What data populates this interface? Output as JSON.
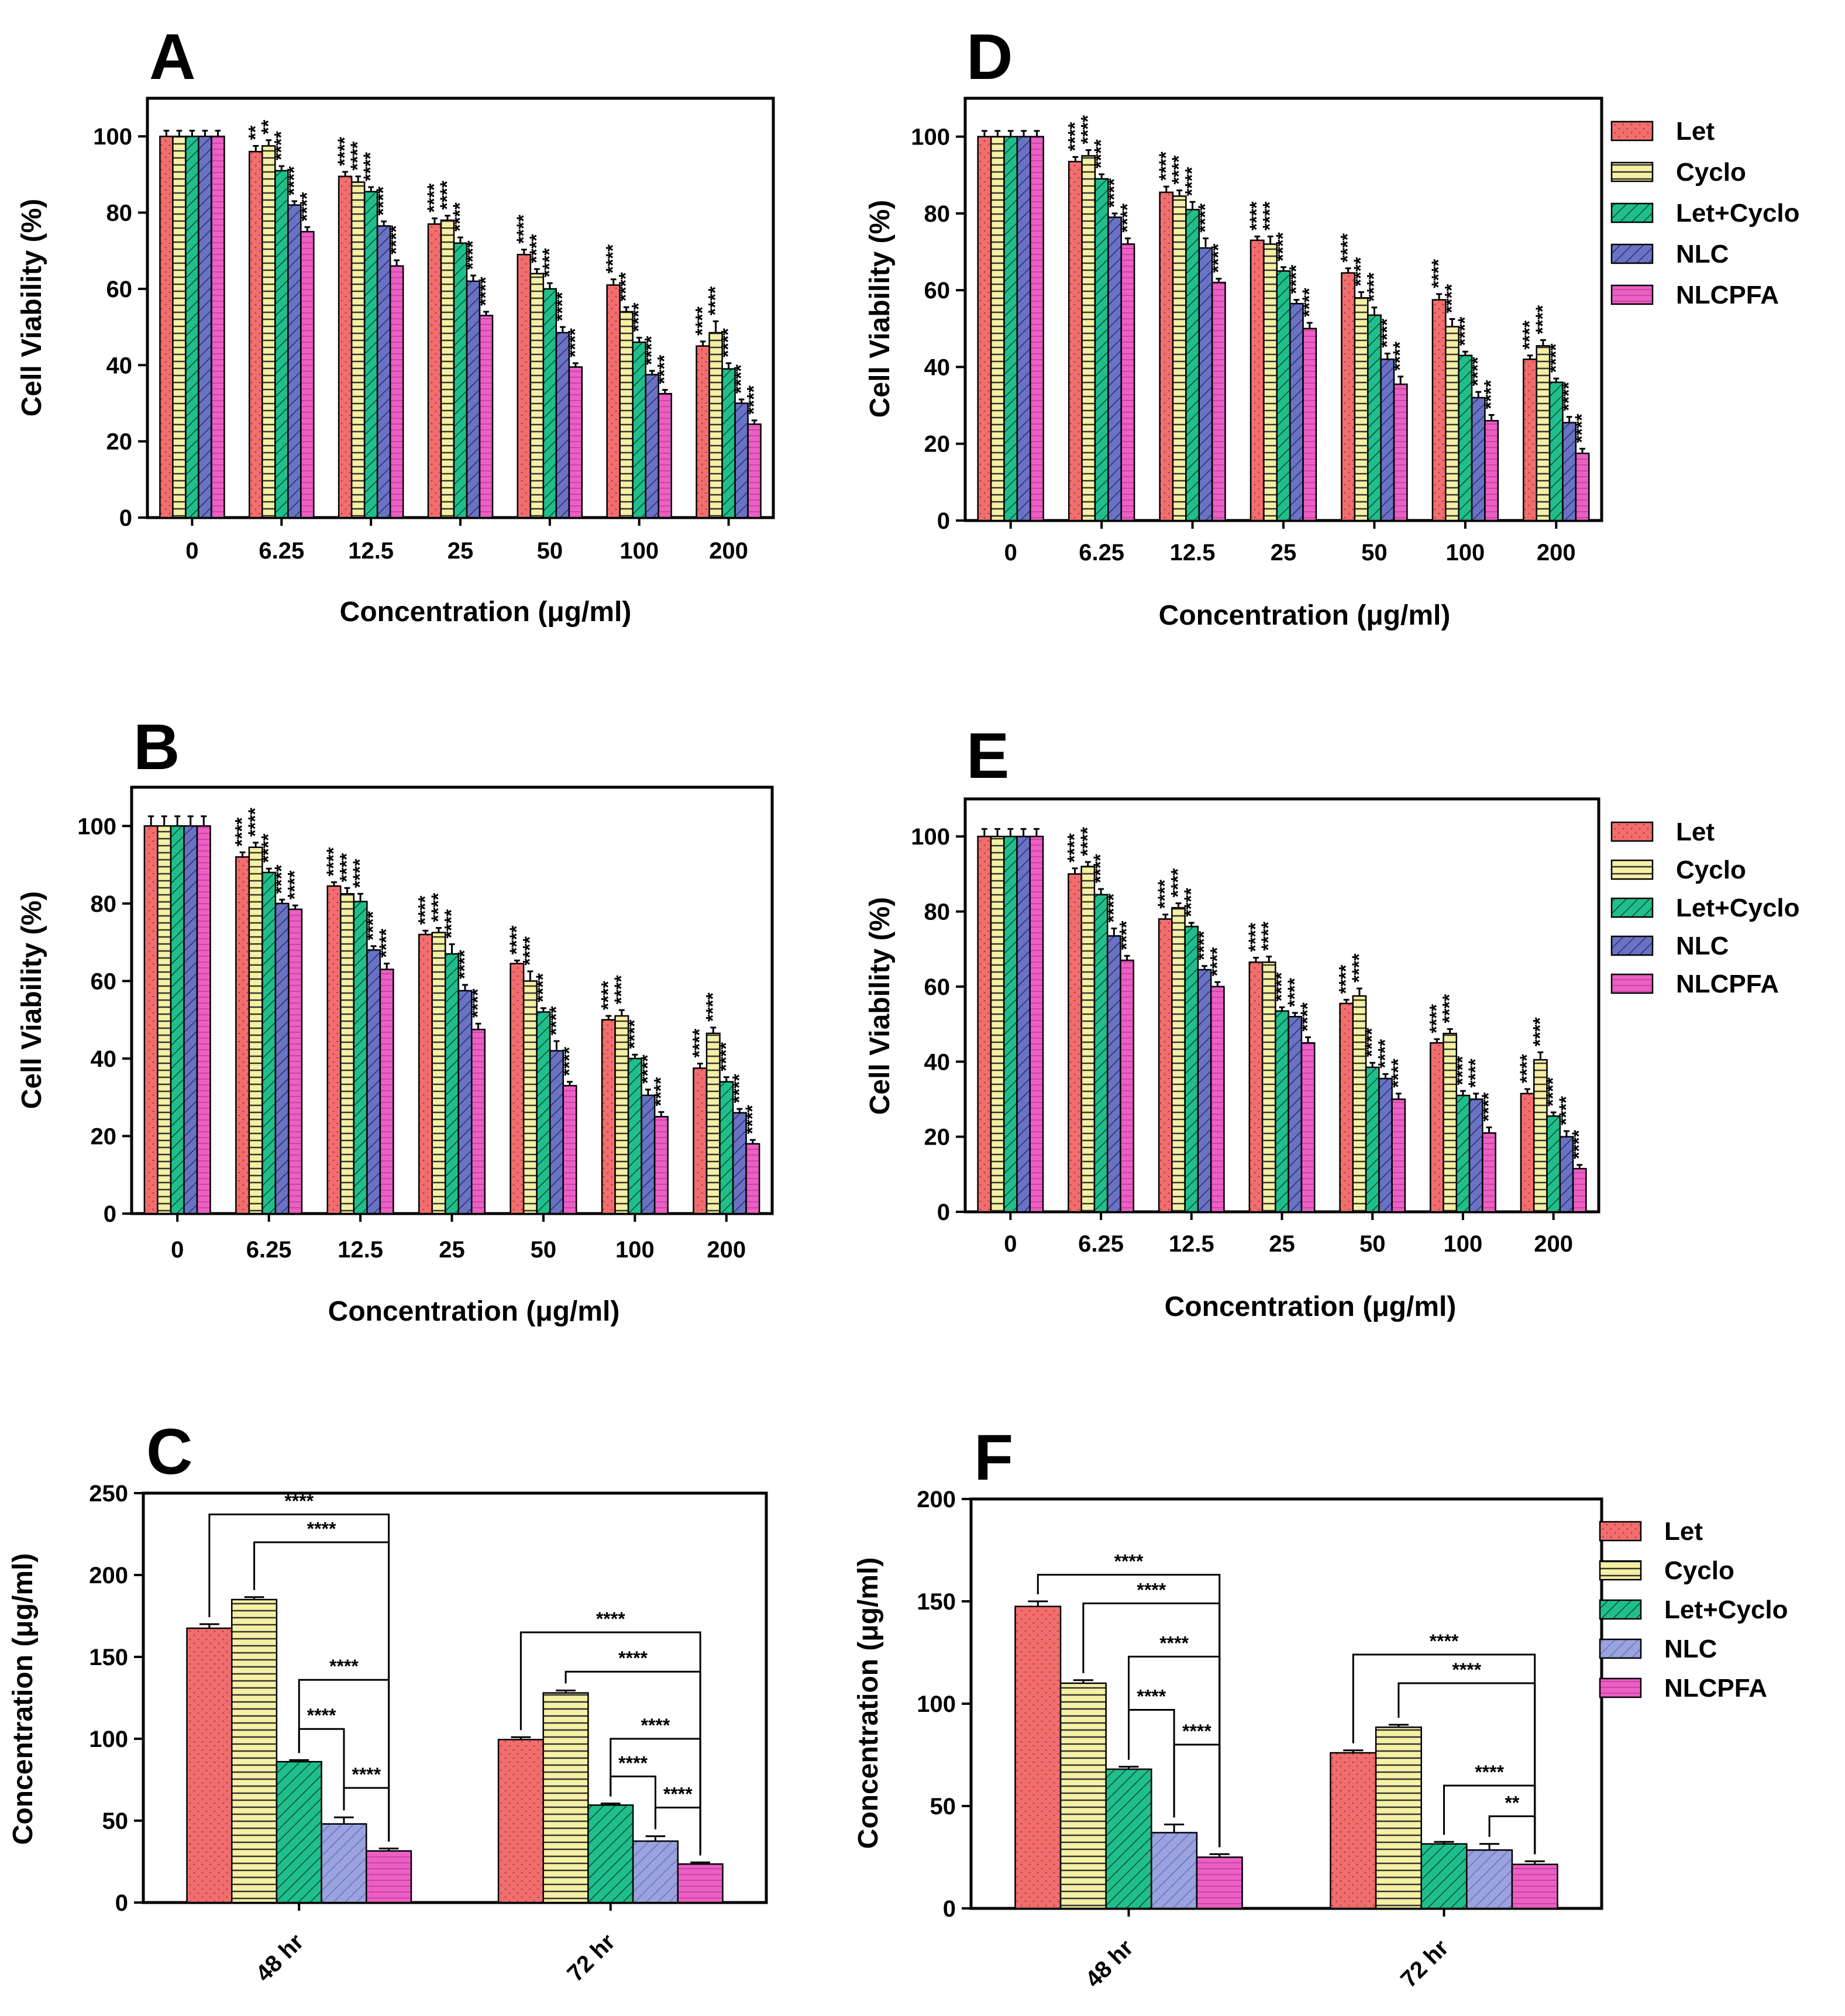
{
  "colors": {
    "Let": "#f26e6e",
    "Cyclo": "#f5f0a3",
    "Let+Cyclo": "#1fbf8c",
    "NLC": "#6a72c4",
    "NLCPFA": "#ec5fc4",
    "NLC_light": "#9aa3dd",
    "frame": "#000000"
  },
  "chart_data": [
    {
      "panel": "A",
      "type": "bar",
      "title": "A",
      "xlabel": "Concentration (μg/ml)",
      "ylabel": "Cell Viability (%)",
      "ylim": [
        0,
        110
      ],
      "yticks": [
        0,
        20,
        40,
        60,
        80,
        100
      ],
      "categories": [
        "0",
        "6.25",
        "12.5",
        "25",
        "50",
        "100",
        "200"
      ],
      "series": [
        {
          "name": "Let",
          "values": [
            100,
            96,
            89.5,
            77,
            69,
            61,
            45
          ],
          "errors": [
            1.5,
            1.5,
            1.2,
            1.5,
            1.3,
            1.5,
            1.2
          ],
          "stars": [
            "",
            "**",
            "****",
            "****",
            "****",
            "****",
            "****"
          ]
        },
        {
          "name": "Cyclo",
          "values": [
            100,
            97.5,
            88,
            78,
            64,
            54,
            48.5
          ],
          "errors": [
            1.5,
            1.5,
            1.5,
            1.2,
            1.2,
            1.2,
            3
          ],
          "stars": [
            "",
            "**",
            "****",
            "****",
            "****",
            "****",
            "****"
          ]
        },
        {
          "name": "Let+Cyclo",
          "values": [
            100,
            91,
            85.5,
            72,
            60,
            46,
            39
          ],
          "errors": [
            1.5,
            1.2,
            1.2,
            1.5,
            1.5,
            1.2,
            1.5
          ],
          "stars": [
            "",
            "****",
            "****",
            "****",
            "****",
            "****",
            "****"
          ]
        },
        {
          "name": "NLC",
          "values": [
            100,
            82,
            76.5,
            62,
            48.5,
            37.5,
            30
          ],
          "errors": [
            1.5,
            1,
            1.2,
            1.5,
            1.5,
            1,
            1
          ],
          "stars": [
            "",
            "****",
            "****",
            "****",
            "****",
            "****",
            "****"
          ]
        },
        {
          "name": "NLCPFA",
          "values": [
            100,
            75,
            66,
            53,
            39.5,
            32.5,
            24.5
          ],
          "errors": [
            1.5,
            1.2,
            1.5,
            1,
            1,
            1,
            1
          ],
          "stars": [
            "",
            "****",
            "****",
            "****",
            "****",
            "****",
            "****"
          ]
        }
      ]
    },
    {
      "panel": "B",
      "type": "bar",
      "title": "B",
      "xlabel": "Concentration (μg/ml)",
      "ylabel": "Cell Viability (%)",
      "ylim": [
        0,
        110
      ],
      "yticks": [
        0,
        20,
        40,
        60,
        80,
        100
      ],
      "categories": [
        "0",
        "6.25",
        "12.5",
        "25",
        "50",
        "100",
        "200"
      ],
      "series": [
        {
          "name": "Let",
          "values": [
            100,
            92,
            84.5,
            72,
            64.5,
            50,
            37.5
          ],
          "errors": [
            2.5,
            1.2,
            1,
            1,
            0.8,
            1,
            1.2
          ],
          "stars": [
            "",
            "****",
            "****",
            "****",
            "****",
            "****",
            "****"
          ]
        },
        {
          "name": "Cyclo",
          "values": [
            100,
            94.5,
            82.5,
            72.5,
            60,
            51,
            46.5
          ],
          "errors": [
            2.5,
            1.2,
            1.5,
            1.2,
            2.5,
            1.5,
            1.5
          ],
          "stars": [
            "",
            "****",
            "****",
            "****",
            "****",
            "****",
            "****"
          ]
        },
        {
          "name": "Let+Cyclo",
          "values": [
            100,
            88,
            80.5,
            67,
            52,
            40,
            34
          ],
          "errors": [
            2.5,
            1,
            2,
            2.5,
            1,
            1,
            1.2
          ],
          "stars": [
            "",
            "****",
            "****",
            "****",
            "****",
            "****",
            "****"
          ]
        },
        {
          "name": "NLC",
          "values": [
            100,
            80,
            68,
            57.5,
            42,
            30.5,
            26
          ],
          "errors": [
            2.5,
            1,
            1,
            1.5,
            2.5,
            1.5,
            1
          ],
          "stars": [
            "",
            "****",
            "****",
            "****",
            "****",
            "****",
            "****"
          ]
        },
        {
          "name": "NLCPFA",
          "values": [
            100,
            78.5,
            63,
            47.5,
            33,
            25,
            18
          ],
          "errors": [
            2.5,
            1,
            1.5,
            1.5,
            1,
            1.2,
            1
          ],
          "stars": [
            "",
            "****",
            "****",
            "****",
            "****",
            "****",
            "****"
          ]
        }
      ]
    },
    {
      "panel": "C",
      "type": "bar",
      "title": "C",
      "xlabel": "",
      "ylabel": "Concentration (μg/ml)",
      "ylim": [
        0,
        250
      ],
      "yticks": [
        0,
        50,
        100,
        150,
        200,
        250
      ],
      "categories": [
        "48 hr",
        "72 hr"
      ],
      "series": [
        {
          "name": "Let",
          "values": [
            167.5,
            99.5
          ],
          "errors": [
            2.5,
            1.5
          ]
        },
        {
          "name": "Cyclo",
          "values": [
            185,
            128
          ],
          "errors": [
            1.5,
            1.5
          ]
        },
        {
          "name": "Let+Cyclo",
          "values": [
            86,
            59.5
          ],
          "errors": [
            1,
            1
          ]
        },
        {
          "name": "NLC",
          "values": [
            48,
            37.5
          ],
          "errors": [
            4,
            3
          ]
        },
        {
          "name": "NLCPFA",
          "values": [
            31.5,
            23.5
          ],
          "errors": [
            1.5,
            1
          ]
        }
      ],
      "brackets": [
        {
          "group": 0,
          "from": "Let",
          "to": "NLCPFA",
          "y": 237,
          "label": "****"
        },
        {
          "group": 0,
          "from": "Cyclo",
          "to": "NLCPFA",
          "y": 220,
          "label": "****"
        },
        {
          "group": 0,
          "from": "NLCPFA",
          "to": "Let+Cyclo",
          "y": 136,
          "label": "****"
        },
        {
          "group": 0,
          "from": "NLC",
          "to": "Let+Cyclo",
          "y": 106,
          "label": "****"
        },
        {
          "group": 0,
          "from": "NLC",
          "to": "NLCPFA",
          "y": 70,
          "label": "****"
        },
        {
          "group": 1,
          "from": "Let",
          "to": "NLCPFA",
          "y": 165,
          "label": "****"
        },
        {
          "group": 1,
          "from": "Cyclo",
          "to": "NLCPFA",
          "y": 141,
          "label": "****"
        },
        {
          "group": 1,
          "from": "NLCPFA",
          "to": "Let+Cyclo",
          "y": 100,
          "label": "****"
        },
        {
          "group": 1,
          "from": "NLC",
          "to": "Let+Cyclo",
          "y": 77,
          "label": "****"
        },
        {
          "group": 1,
          "from": "NLC",
          "to": "NLCPFA",
          "y": 58,
          "label": "****"
        }
      ]
    },
    {
      "panel": "D",
      "type": "bar",
      "title": "D",
      "xlabel": "Concentration (μg/ml)",
      "ylabel": "Cell Viability (%)",
      "ylim": [
        0,
        110
      ],
      "yticks": [
        0,
        20,
        40,
        60,
        80,
        100
      ],
      "categories": [
        "0",
        "6.25",
        "12.5",
        "25",
        "50",
        "100",
        "200"
      ],
      "legend": [
        "Let",
        "Cyclo",
        "Let+Cyclo",
        "NLC",
        "NLCPFA"
      ],
      "series": [
        {
          "name": "Let",
          "values": [
            100,
            93.5,
            85.5,
            73,
            64.5,
            57.5,
            42
          ],
          "errors": [
            1.5,
            1.2,
            1.5,
            1,
            1.2,
            1.5,
            1
          ],
          "stars": [
            "",
            "****",
            "****",
            "****",
            "****",
            "****",
            "****"
          ]
        },
        {
          "name": "Cyclo",
          "values": [
            100,
            95,
            84.5,
            72,
            58,
            50.5,
            45.5
          ],
          "errors": [
            1.5,
            1.5,
            1.5,
            2,
            1.5,
            2,
            1.5
          ],
          "stars": [
            "",
            "****",
            "****",
            "****",
            "****",
            "****",
            "****"
          ]
        },
        {
          "name": "Let+Cyclo",
          "values": [
            100,
            89,
            81,
            65,
            53.5,
            43,
            36
          ],
          "errors": [
            1.5,
            1.2,
            2,
            1,
            2,
            1,
            1
          ],
          "stars": [
            "",
            "****",
            "****",
            "****",
            "****",
            "****",
            "****"
          ]
        },
        {
          "name": "NLC",
          "values": [
            100,
            79,
            71,
            56.5,
            42,
            32,
            25.5
          ],
          "errors": [
            1.5,
            1,
            2.5,
            1,
            1.5,
            1.5,
            1.5
          ],
          "stars": [
            "",
            "****",
            "****",
            "****",
            "****",
            "****",
            "****"
          ]
        },
        {
          "name": "NLCPFA",
          "values": [
            100,
            72,
            62,
            50,
            35.5,
            26,
            17.5
          ],
          "errors": [
            1.5,
            1.5,
            1,
            1.5,
            2,
            1.5,
            1.2
          ],
          "stars": [
            "",
            "****",
            "****",
            "****",
            "****",
            "****",
            "****"
          ]
        }
      ]
    },
    {
      "panel": "E",
      "type": "bar",
      "title": "E",
      "xlabel": "Concentration (μg/ml)",
      "ylabel": "Cell Viability (%)",
      "ylim": [
        0,
        110
      ],
      "yticks": [
        0,
        20,
        40,
        60,
        80,
        100
      ],
      "categories": [
        "0",
        "6.25",
        "12.5",
        "25",
        "50",
        "100",
        "200"
      ],
      "legend": [
        "Let",
        "Cyclo",
        "Let+Cyclo",
        "NLC",
        "NLCPFA"
      ],
      "series": [
        {
          "name": "Let",
          "values": [
            100,
            90,
            78,
            66.5,
            55.5,
            45,
            31.5
          ],
          "errors": [
            2,
            1.5,
            1.2,
            1.2,
            1,
            1,
            1.2
          ],
          "stars": [
            "",
            "****",
            "****",
            "****",
            "****",
            "****",
            "****"
          ]
        },
        {
          "name": "Cyclo",
          "values": [
            100,
            92,
            81,
            66.5,
            57.5,
            47.5,
            40.5
          ],
          "errors": [
            2,
            1.2,
            1.2,
            1.5,
            2,
            1.2,
            2
          ],
          "stars": [
            "",
            "****",
            "****",
            "****",
            "****",
            "****",
            "****"
          ]
        },
        {
          "name": "Let+Cyclo",
          "values": [
            100,
            84.5,
            76,
            53.5,
            38.5,
            31,
            25.5
          ],
          "errors": [
            2,
            1.5,
            1,
            1,
            1.2,
            1.2,
            1
          ],
          "stars": [
            "",
            "****",
            "****",
            "****",
            "****",
            "****",
            "****"
          ]
        },
        {
          "name": "NLC",
          "values": [
            100,
            73.5,
            64.5,
            52,
            35.5,
            30,
            20
          ],
          "errors": [
            2,
            2,
            1,
            1,
            1.2,
            1.5,
            1.5
          ],
          "stars": [
            "",
            "****",
            "****",
            "****",
            "****",
            "****",
            "****"
          ]
        },
        {
          "name": "NLCPFA",
          "values": [
            100,
            67,
            60,
            45,
            30,
            21,
            11.5
          ],
          "errors": [
            2,
            1.2,
            1.2,
            1.5,
            1.5,
            1.5,
            1
          ],
          "stars": [
            "",
            "****",
            "****",
            "****",
            "****",
            "****",
            "****"
          ]
        }
      ]
    },
    {
      "panel": "F",
      "type": "bar",
      "title": "F",
      "xlabel": "",
      "ylabel": "Concentration (μg/ml)",
      "ylim": [
        0,
        200
      ],
      "yticks": [
        0,
        50,
        100,
        150,
        200
      ],
      "categories": [
        "48 hr",
        "72 hr"
      ],
      "legend": [
        "Let",
        "Cyclo",
        "Let+Cyclo",
        "NLC",
        "NLCPFA"
      ],
      "series": [
        {
          "name": "Let",
          "values": [
            147.5,
            76
          ],
          "errors": [
            2.5,
            1.2
          ]
        },
        {
          "name": "Cyclo",
          "values": [
            110,
            88.5
          ],
          "errors": [
            1.5,
            1.2
          ]
        },
        {
          "name": "Let+Cyclo",
          "values": [
            68,
            31.5
          ],
          "errors": [
            1.2,
            1
          ]
        },
        {
          "name": "NLC",
          "values": [
            37,
            28.5
          ],
          "errors": [
            4,
            3
          ]
        },
        {
          "name": "NLCPFA",
          "values": [
            25,
            21.5
          ],
          "errors": [
            1.5,
            1.5
          ]
        }
      ],
      "brackets": [
        {
          "group": 0,
          "from": "Let",
          "to": "NLCPFA",
          "y": 163,
          "label": "****"
        },
        {
          "group": 0,
          "from": "Cyclo",
          "to": "NLCPFA",
          "y": 149,
          "label": "****"
        },
        {
          "group": 0,
          "from": "NLCPFA",
          "to": "Let+Cyclo",
          "y": 123,
          "label": "****"
        },
        {
          "group": 0,
          "from": "NLC",
          "to": "Let+Cyclo",
          "y": 97,
          "label": "****"
        },
        {
          "group": 0,
          "from": "NLC",
          "to": "NLCPFA",
          "y": 80,
          "label": "****"
        },
        {
          "group": 1,
          "from": "Let",
          "to": "NLCPFA",
          "y": 124,
          "label": "****"
        },
        {
          "group": 1,
          "from": "Cyclo",
          "to": "NLCPFA",
          "y": 110,
          "label": "****"
        },
        {
          "group": 1,
          "from": "NLCPFA",
          "to": "Let+Cyclo",
          "y": 60,
          "label": "****"
        },
        {
          "group": 1,
          "from": "NLC",
          "to": "NLCPFA",
          "y": 45,
          "label": "**"
        }
      ]
    }
  ]
}
